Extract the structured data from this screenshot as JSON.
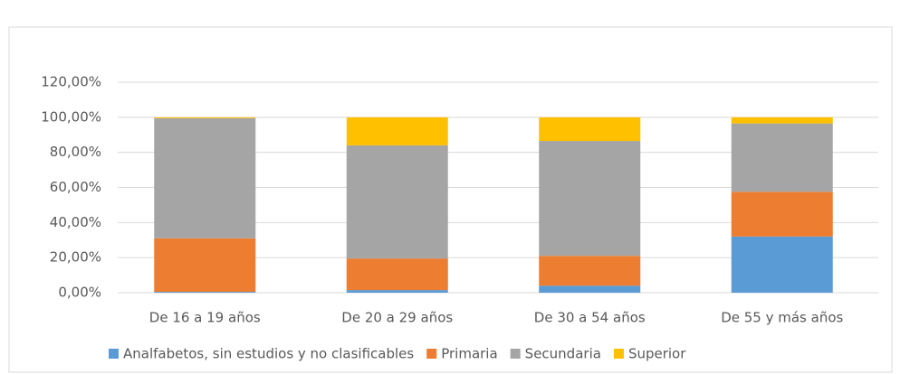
{
  "chart_data": {
    "type": "stacked_bar",
    "categories": [
      "De 16 a 19 años",
      "De 20 a 29 años",
      "De 30 a 54 años",
      "De 55 y más años"
    ],
    "series": [
      {
        "name": "Analfabetos, sin estudios y no clasificables",
        "color": "#5b9bd5",
        "values": [
          0.5,
          1.5,
          4,
          32
        ]
      },
      {
        "name": "Primaria",
        "color": "#ed7d31",
        "values": [
          30.5,
          18,
          17,
          25.5
        ]
      },
      {
        "name": "Secundaria",
        "color": "#a5a5a5",
        "values": [
          68.5,
          64.5,
          65.5,
          39
        ]
      },
      {
        "name": "Superior",
        "color": "#ffc000",
        "values": [
          0.5,
          16,
          13.5,
          3.5
        ]
      }
    ],
    "ylim": [
      0,
      120
    ],
    "yticks": [
      {
        "value": 0,
        "label": "0,00%"
      },
      {
        "value": 20,
        "label": "20,00%"
      },
      {
        "value": 40,
        "label": "40,00%"
      },
      {
        "value": 60,
        "label": "60,00%"
      },
      {
        "value": 80,
        "label": "80,00%"
      },
      {
        "value": 100,
        "label": "100,00%"
      },
      {
        "value": 120,
        "label": "120,00%"
      }
    ],
    "grid": true,
    "legend": "bottom"
  }
}
